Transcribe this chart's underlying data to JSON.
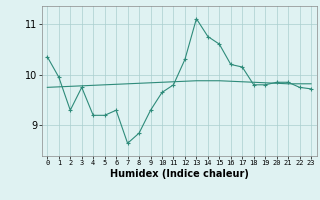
{
  "x": [
    0,
    1,
    2,
    3,
    4,
    5,
    6,
    7,
    8,
    9,
    10,
    11,
    12,
    13,
    14,
    15,
    16,
    17,
    18,
    19,
    20,
    21,
    22,
    23
  ],
  "y_main": [
    10.35,
    9.95,
    9.3,
    9.75,
    9.2,
    9.2,
    9.3,
    8.65,
    8.85,
    9.3,
    9.65,
    9.8,
    10.3,
    11.1,
    10.75,
    10.6,
    10.2,
    10.15,
    9.8,
    9.8,
    9.85,
    9.85,
    9.75,
    9.72
  ],
  "y_trend": [
    9.75,
    9.76,
    9.77,
    9.78,
    9.79,
    9.8,
    9.81,
    9.82,
    9.83,
    9.84,
    9.85,
    9.86,
    9.87,
    9.88,
    9.88,
    9.88,
    9.87,
    9.86,
    9.85,
    9.84,
    9.83,
    9.82,
    9.82,
    9.82
  ],
  "color": "#2e8b7a",
  "bg_color": "#dff2f2",
  "grid_color": "#aacfcf",
  "xlabel": "Humidex (Indice chaleur)",
  "yticks": [
    9,
    10,
    11
  ],
  "xticks": [
    0,
    1,
    2,
    3,
    4,
    5,
    6,
    7,
    8,
    9,
    10,
    11,
    12,
    13,
    14,
    15,
    16,
    17,
    18,
    19,
    20,
    21,
    22,
    23
  ],
  "ylim": [
    8.4,
    11.35
  ],
  "xlim": [
    -0.5,
    23.5
  ]
}
